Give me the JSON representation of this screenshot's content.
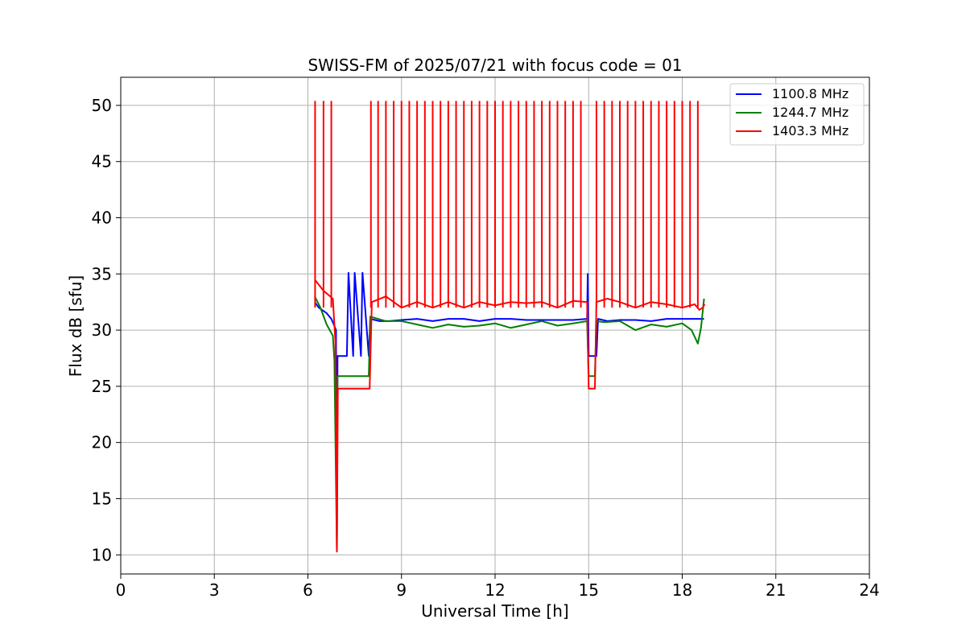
{
  "chart_data": {
    "type": "line",
    "title": "SWISS-FM of 2025/07/21 with focus code = 01",
    "xlabel": "Universal Time [h]",
    "ylabel": "Flux dB [sfu]",
    "xlim": [
      0,
      24
    ],
    "ylim": [
      8.3,
      52.5
    ],
    "xticks": [
      0,
      3,
      6,
      9,
      12,
      15,
      18,
      21,
      24
    ],
    "yticks": [
      10,
      15,
      20,
      25,
      30,
      35,
      40,
      45,
      50
    ],
    "grid": true,
    "legend_position": "top-right",
    "series": [
      {
        "name": "1100.8 MHz",
        "color": "#0000ff",
        "x": [
          6.22,
          6.35,
          6.6,
          6.75,
          6.83,
          6.9,
          6.93,
          6.95,
          7.0,
          7.05,
          7.25,
          7.3,
          7.45,
          7.5,
          7.7,
          7.75,
          7.95,
          8.0,
          8.3,
          8.6,
          9.0,
          9.5,
          10.0,
          10.5,
          11.0,
          11.5,
          12.0,
          12.5,
          13.0,
          13.5,
          14.0,
          14.5,
          14.95,
          14.97,
          15.0,
          15.02,
          15.25,
          15.3,
          15.6,
          16.0,
          16.5,
          17.0,
          17.5,
          18.0,
          18.4,
          18.7
        ],
        "y": [
          32.5,
          32.0,
          31.5,
          31.0,
          30.5,
          30.0,
          10.3,
          27.7,
          27.7,
          27.7,
          27.7,
          35.1,
          27.7,
          35.1,
          27.7,
          35.1,
          27.7,
          31.0,
          30.8,
          30.8,
          30.9,
          31.0,
          30.8,
          31.0,
          31.0,
          30.8,
          31.0,
          31.0,
          30.9,
          30.9,
          30.9,
          30.9,
          31.0,
          35.0,
          27.7,
          27.7,
          27.7,
          31.0,
          30.8,
          30.9,
          30.9,
          30.8,
          31.0,
          31.0,
          31.0,
          31.0
        ]
      },
      {
        "name": "1244.7 MHz",
        "color": "#008000",
        "x": [
          6.22,
          6.4,
          6.6,
          6.8,
          6.85,
          6.93,
          6.95,
          7.0,
          7.2,
          7.5,
          7.9,
          7.95,
          8.0,
          8.5,
          9.0,
          9.5,
          10.0,
          10.5,
          11.0,
          11.5,
          12.0,
          12.5,
          13.0,
          13.5,
          14.0,
          14.5,
          14.95,
          15.0,
          15.2,
          15.25,
          15.5,
          16.0,
          16.5,
          17.0,
          17.5,
          18.0,
          18.3,
          18.5,
          18.6,
          18.7
        ],
        "y": [
          33.0,
          32.0,
          30.5,
          29.5,
          27.3,
          10.3,
          25.9,
          25.9,
          25.9,
          25.9,
          25.9,
          25.9,
          31.2,
          30.8,
          30.8,
          30.5,
          30.2,
          30.5,
          30.3,
          30.4,
          30.6,
          30.2,
          30.5,
          30.8,
          30.4,
          30.6,
          30.8,
          25.9,
          25.9,
          30.8,
          30.7,
          30.8,
          30.0,
          30.5,
          30.3,
          30.6,
          30.0,
          28.8,
          30.2,
          32.8
        ]
      },
      {
        "name": "1403.3 MHz",
        "color": "#ff0000",
        "x": [
          6.22,
          6.5,
          6.8,
          6.88,
          6.93,
          6.96,
          7.3,
          7.9,
          7.98,
          8.05,
          8.5,
          9.0,
          9.5,
          10.0,
          10.5,
          11.0,
          11.5,
          12.0,
          12.5,
          13.0,
          13.5,
          14.0,
          14.5,
          14.95,
          15.0,
          15.2,
          15.25,
          15.6,
          16.0,
          16.5,
          17.0,
          17.5,
          18.0,
          18.4,
          18.55,
          18.65,
          18.72
        ],
        "y": [
          34.5,
          33.5,
          32.8,
          29.0,
          10.3,
          24.8,
          24.8,
          24.8,
          24.8,
          32.5,
          33.0,
          32.0,
          32.5,
          32.0,
          32.5,
          32.0,
          32.5,
          32.2,
          32.5,
          32.4,
          32.5,
          32.0,
          32.6,
          32.5,
          24.8,
          24.8,
          32.5,
          32.8,
          32.5,
          32.0,
          32.5,
          32.3,
          32.0,
          32.3,
          31.8,
          32.0,
          32.3
        ]
      }
    ],
    "spike_series": "1403.3 MHz",
    "spike_peak": 50.4,
    "spikes_x": [
      6.23,
      6.5,
      6.75,
      8.02,
      8.25,
      8.5,
      8.75,
      9.0,
      9.25,
      9.5,
      9.75,
      10.0,
      10.25,
      10.5,
      10.75,
      11.0,
      11.25,
      11.5,
      11.75,
      12.0,
      12.25,
      12.5,
      12.75,
      13.0,
      13.25,
      13.5,
      13.75,
      14.0,
      14.25,
      14.5,
      14.75,
      15.25,
      15.5,
      15.75,
      16.0,
      16.25,
      16.5,
      16.75,
      17.0,
      17.25,
      17.5,
      17.75,
      18.0,
      18.25,
      18.5
    ]
  }
}
